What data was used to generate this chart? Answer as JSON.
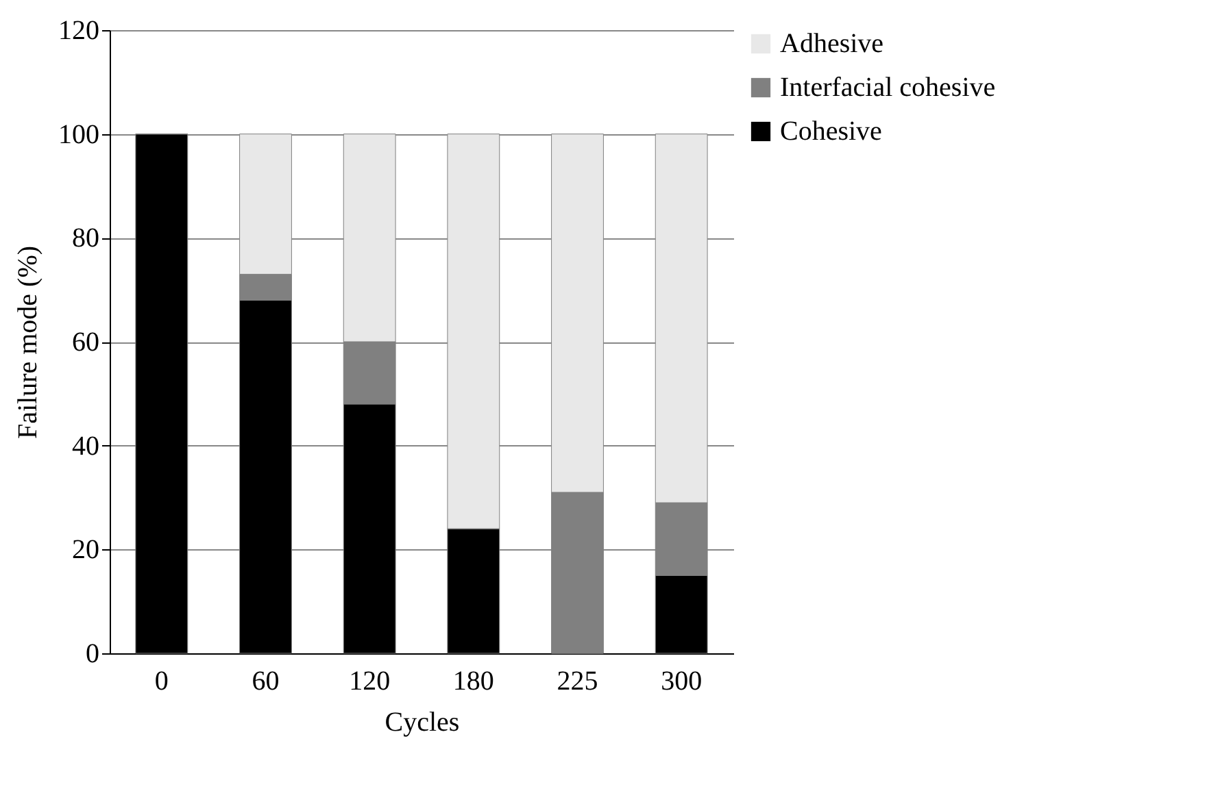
{
  "chart_data": {
    "type": "bar",
    "stacked": true,
    "xlabel": "Cycles",
    "ylabel": "Failure mode (%)",
    "categories": [
      "0",
      "60",
      "120",
      "180",
      "225",
      "300"
    ],
    "series": [
      {
        "name": "Cohesive",
        "color": "#000000",
        "values": [
          100,
          68,
          48,
          24,
          0,
          15
        ]
      },
      {
        "name": "Interfacial cohesive",
        "color": "#808080",
        "values": [
          0,
          5,
          12,
          0,
          31,
          14
        ]
      },
      {
        "name": "Adhesive",
        "color": "#e8e8e8",
        "values": [
          0,
          27,
          40,
          76,
          69,
          71
        ]
      }
    ],
    "ylim": [
      0,
      120
    ],
    "yticks": [
      0,
      20,
      40,
      60,
      80,
      100,
      120
    ],
    "grid": "y",
    "legend": "top right"
  }
}
